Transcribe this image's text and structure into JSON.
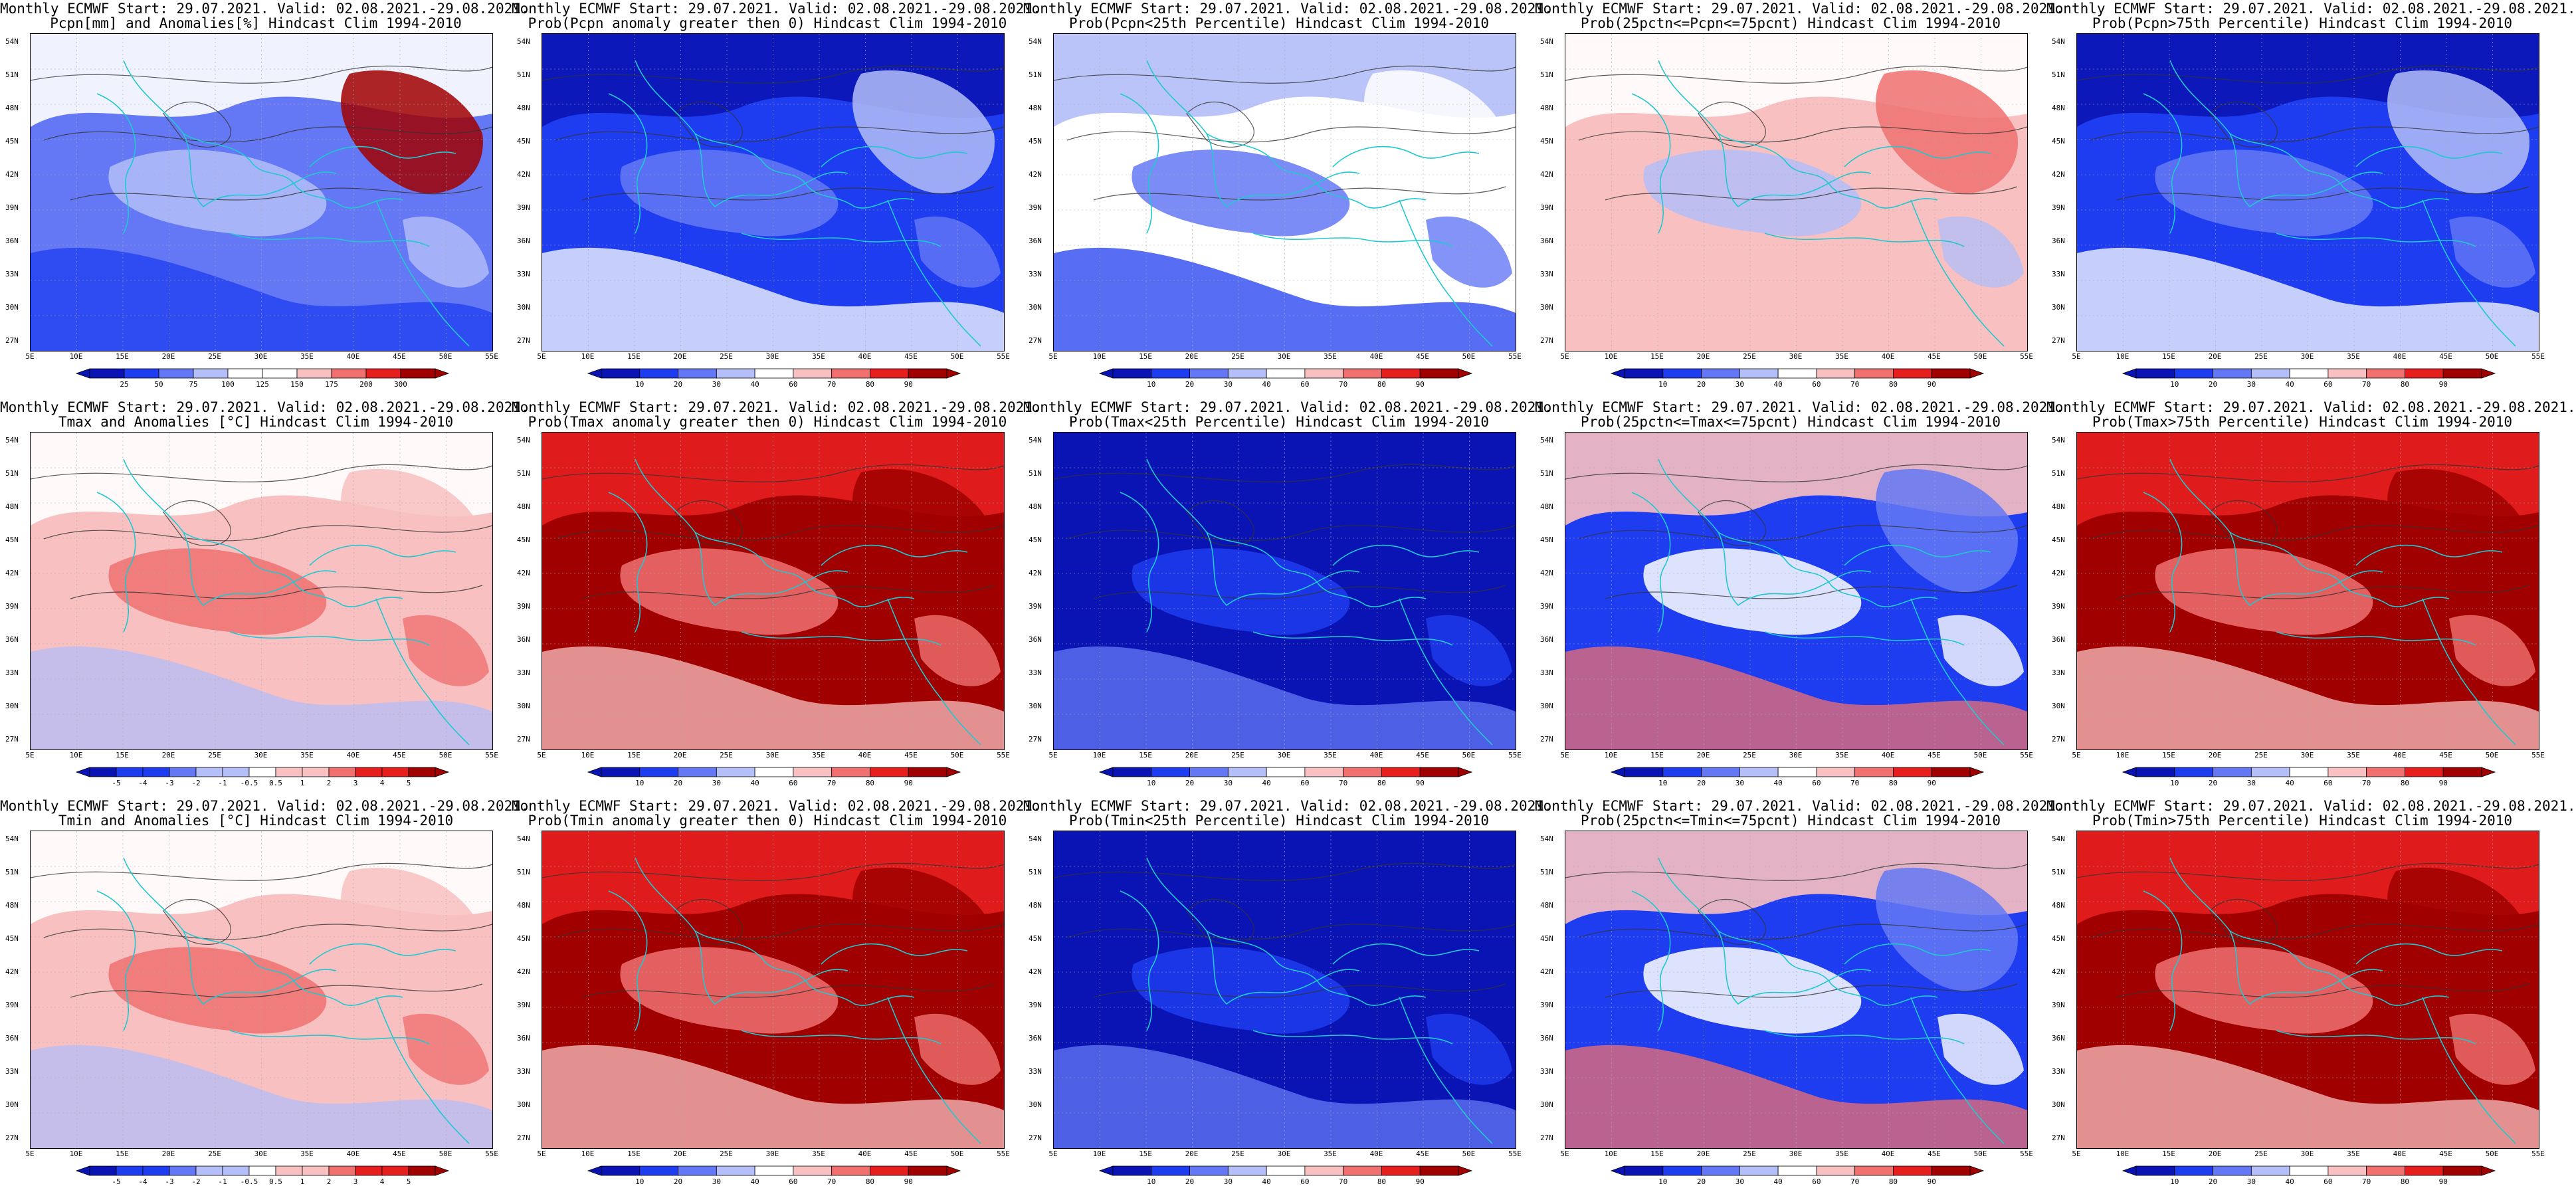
{
  "colors": {
    "deep_blue": "#0a14b4",
    "blue": "#1e3cf0",
    "mid_blue": "#6478f5",
    "light_blue": "#b4bef8",
    "white": "#ffffff",
    "light_red": "#f8c0c0",
    "mid_red": "#f07070",
    "red": "#e61e1e",
    "dark_red": "#a00000",
    "coast": "#20c8d0",
    "contour": "#333333"
  },
  "axes": {
    "lat_labels": [
      "54N",
      "51N",
      "48N",
      "45N",
      "42N",
      "39N",
      "36N",
      "33N",
      "30N",
      "27N"
    ],
    "lon_labels": [
      "5E",
      "10E",
      "15E",
      "20E",
      "25E",
      "30E",
      "35E",
      "40E",
      "45E",
      "50E",
      "55E"
    ]
  },
  "colorbars": {
    "prob": [
      "10",
      "20",
      "30",
      "40",
      "60",
      "70",
      "80",
      "90"
    ],
    "pcpn": [
      "25",
      "50",
      "75",
      "100",
      "125",
      "150",
      "175",
      "200",
      "300"
    ],
    "temp": [
      "-5",
      "-4",
      "-3",
      "-2",
      "-1",
      "-0.5",
      "0.5",
      "1",
      "2",
      "3",
      "4",
      "5"
    ]
  },
  "panels": [
    {
      "id": "pcpn-anom",
      "t1": "Monthly ECMWF Start: 29.07.2021. Valid: 02.08.2021.-29.08.2021.",
      "t2": "Pcpn[mm] and Anomalies[%] Hindcast Clim 1994-2010",
      "bar": "pcpn",
      "theme": "pcpn-anom"
    },
    {
      "id": "pcpn-gt0",
      "t1": "Monthly ECMWF Start: 29.07.2021. Valid: 02.08.2021.-29.08.2021.",
      "t2": "Prob(Pcpn anomaly greater then 0) Hindcast Clim 1994-2010",
      "bar": "prob",
      "theme": "blue"
    },
    {
      "id": "pcpn-lt25",
      "t1": "Monthly ECMWF Start: 29.07.2021. Valid: 02.08.2021.-29.08.2021.",
      "t2": "Prob(Pcpn<25th Percentile) Hindcast Clim 1994-2010",
      "bar": "prob",
      "theme": "white"
    },
    {
      "id": "pcpn-mid",
      "t1": "Monthly ECMWF Start: 29.07.2021. Valid: 02.08.2021.-29.08.2021.",
      "t2": "Prob(25pctn<=Pcpn<=75pcnt) Hindcast Clim 1994-2010",
      "bar": "prob",
      "theme": "mixed"
    },
    {
      "id": "pcpn-gt75",
      "t1": "Monthly ECMWF Start: 29.07.2021. Valid: 02.08.2021.-29.08.2021.",
      "t2": "Prob(Pcpn>75th Percentile) Hindcast Clim 1994-2010",
      "bar": "prob",
      "theme": "blue"
    },
    {
      "id": "tmax-anom",
      "t1": "Monthly ECMWF Start: 29.07.2021. Valid: 02.08.2021.-29.08.2021.",
      "t2": "Tmax and Anomalies [°C] Hindcast Clim 1994-2010",
      "bar": "temp",
      "theme": "lightred"
    },
    {
      "id": "tmax-gt0",
      "t1": "Monthly ECMWF Start: 29.07.2021. Valid: 02.08.2021.-29.08.2021.",
      "t2": "Prob(Tmax anomaly greater then 0) Hindcast Clim 1994-2010",
      "bar": "prob",
      "theme": "red"
    },
    {
      "id": "tmax-lt25",
      "t1": "Monthly ECMWF Start: 29.07.2021. Valid: 02.08.2021.-29.08.2021.",
      "t2": "Prob(Tmax<25th Percentile) Hindcast Clim 1994-2010",
      "bar": "prob",
      "theme": "deepblue"
    },
    {
      "id": "tmax-mid",
      "t1": "Monthly ECMWF Start: 29.07.2021. Valid: 02.08.2021.-29.08.2021.",
      "t2": "Prob(25pctn<=Tmax<=75pcnt) Hindcast Clim 1994-2010",
      "bar": "prob",
      "theme": "mixedblue"
    },
    {
      "id": "tmax-gt75",
      "t1": "Monthly ECMWF Start: 29.07.2021. Valid: 02.08.2021.-29.08.2021.",
      "t2": "Prob(Tmax>75th Percentile) Hindcast Clim 1994-2010",
      "bar": "prob",
      "theme": "red"
    },
    {
      "id": "tmin-anom",
      "t1": "Monthly ECMWF Start: 29.07.2021. Valid: 02.08.2021.-29.08.2021.",
      "t2": "Tmin and Anomalies [°C] Hindcast Clim 1994-2010",
      "bar": "temp",
      "theme": "lightred"
    },
    {
      "id": "tmin-gt0",
      "t1": "Monthly ECMWF Start: 29.07.2021. Valid: 02.08.2021.-29.08.2021.",
      "t2": "Prob(Tmin anomaly greater then 0) Hindcast Clim 1994-2010",
      "bar": "prob",
      "theme": "red"
    },
    {
      "id": "tmin-lt25",
      "t1": "Monthly ECMWF Start: 29.07.2021. Valid: 02.08.2021.-29.08.2021.",
      "t2": "Prob(Tmin<25th Percentile) Hindcast Clim 1994-2010",
      "bar": "prob",
      "theme": "deepblue"
    },
    {
      "id": "tmin-mid",
      "t1": "Monthly ECMWF Start: 29.07.2021. Valid: 02.08.2021.-29.08.2021.",
      "t2": "Prob(25pctn<=Tmin<=75pcnt) Hindcast Clim 1994-2010",
      "bar": "prob",
      "theme": "mixedblue"
    },
    {
      "id": "tmin-gt75",
      "t1": "Monthly ECMWF Start: 29.07.2021. Valid: 02.08.2021.-29.08.2021.",
      "t2": "Prob(Tmin>75th Percentile) Hindcast Clim 1994-2010",
      "bar": "prob",
      "theme": "red"
    }
  ]
}
